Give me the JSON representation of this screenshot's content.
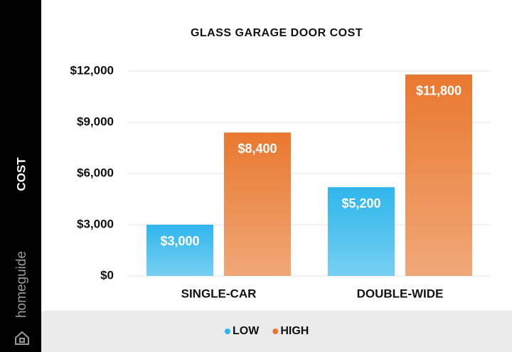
{
  "brand": "homeguide",
  "chart_data": {
    "type": "bar",
    "title": "GLASS GARAGE DOOR COST",
    "y_label": "COST",
    "categories": [
      "SINGLE-CAR",
      "DOUBLE-WIDE"
    ],
    "series": [
      {
        "name": "LOW",
        "color": "#2fb6ec",
        "values": [
          3000,
          5200
        ],
        "value_labels": [
          "$3,000",
          "$5,200"
        ]
      },
      {
        "name": "HIGH",
        "color": "#e9782f",
        "values": [
          8400,
          11800
        ],
        "value_labels": [
          "$8,400",
          "$11,800"
        ]
      }
    ],
    "ylim": [
      0,
      12000
    ],
    "yticks": [
      {
        "value": 0,
        "label": "$0"
      },
      {
        "value": 3000,
        "label": "$3,000"
      },
      {
        "value": 6000,
        "label": "$6,000"
      },
      {
        "value": 9000,
        "label": "$9,000"
      },
      {
        "value": 12000,
        "label": "$12,000"
      }
    ],
    "grid": true
  }
}
